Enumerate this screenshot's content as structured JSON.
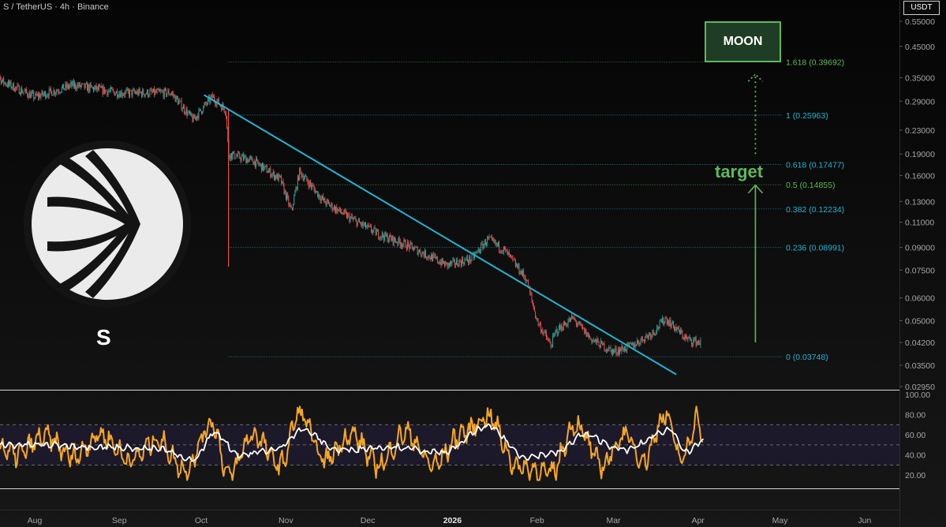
{
  "header": {
    "symbol": "S / TetherUS · 4h · Binance"
  },
  "currency": "USDT",
  "annotations": {
    "moon": "MOON",
    "target": "target",
    "ticker": "S"
  },
  "colors": {
    "background": "#0a0a0a",
    "up": "#26a69a",
    "down": "#ef5350",
    "trendline": "#22b4d2",
    "fib": "#22b4d2",
    "fib_ext": "#5fb85a",
    "rsi": "#f5a623",
    "rsi_ma": "#ffffff"
  },
  "chart_data": [
    {
      "type": "candlestick",
      "title": "S / TetherUS · 4h · Binance",
      "y_scale": "log",
      "ylim": [
        0.0295,
        0.55
      ],
      "y_ticks": [
        "0.55000",
        "0.45000",
        "0.35000",
        "0.29000",
        "0.23000",
        "0.19000",
        "0.16000",
        "0.13000",
        "0.11000",
        "0.09000",
        "0.07500",
        "0.06000",
        "0.05000",
        "0.04200",
        "0.03500",
        "0.02950"
      ],
      "x_ticks": [
        "Aug",
        "Sep",
        "Oct",
        "Nov",
        "Dec",
        "2026",
        "Feb",
        "Mar",
        "Apr",
        "May",
        "Jun"
      ],
      "price_path": [
        {
          "date": "2025-07-15",
          "close": 0.42
        },
        {
          "date": "2025-07-20",
          "close": 0.34
        },
        {
          "date": "2025-08-01",
          "close": 0.3
        },
        {
          "date": "2025-08-15",
          "close": 0.33
        },
        {
          "date": "2025-09-01",
          "close": 0.31
        },
        {
          "date": "2025-09-20",
          "close": 0.31
        },
        {
          "date": "2025-09-28",
          "close": 0.25
        },
        {
          "date": "2025-10-05",
          "close": 0.3
        },
        {
          "date": "2025-10-10",
          "close": 0.27
        },
        {
          "date": "2025-10-11",
          "close": 0.19
        },
        {
          "date": "2025-10-20",
          "close": 0.18
        },
        {
          "date": "2025-10-30",
          "close": 0.155
        },
        {
          "date": "2025-11-03",
          "close": 0.12
        },
        {
          "date": "2025-11-06",
          "close": 0.165
        },
        {
          "date": "2025-11-15",
          "close": 0.13
        },
        {
          "date": "2025-11-25",
          "close": 0.113
        },
        {
          "date": "2025-12-05",
          "close": 0.1
        },
        {
          "date": "2025-12-15",
          "close": 0.092
        },
        {
          "date": "2025-12-30",
          "close": 0.078
        },
        {
          "date": "2026-01-08",
          "close": 0.082
        },
        {
          "date": "2026-01-14",
          "close": 0.096
        },
        {
          "date": "2026-01-20",
          "close": 0.088
        },
        {
          "date": "2026-01-28",
          "close": 0.07
        },
        {
          "date": "2026-02-01",
          "close": 0.05
        },
        {
          "date": "2026-02-06",
          "close": 0.041
        },
        {
          "date": "2026-02-08",
          "close": 0.046
        },
        {
          "date": "2026-02-14",
          "close": 0.051
        },
        {
          "date": "2026-02-21",
          "close": 0.043
        },
        {
          "date": "2026-03-01",
          "close": 0.039
        },
        {
          "date": "2026-03-08",
          "close": 0.041
        },
        {
          "date": "2026-03-16",
          "close": 0.046
        },
        {
          "date": "2026-03-20",
          "close": 0.051
        },
        {
          "date": "2026-03-28",
          "close": 0.043
        },
        {
          "date": "2026-04-02",
          "close": 0.042
        }
      ],
      "low_wick": {
        "date": "2025-10-11",
        "low": 0.077
      },
      "trendline": [
        {
          "date": "2025-10-02",
          "price": 0.305
        },
        {
          "date": "2026-03-24",
          "price": 0.0325
        }
      ],
      "fib_levels": [
        {
          "label": "1.618 (0.39692)",
          "value": 0.39692,
          "extension": true
        },
        {
          "label": "1 (0.25963)",
          "value": 0.25963
        },
        {
          "label": "0.618 (0.17477)",
          "value": 0.17477
        },
        {
          "label": "0.5 (0.14855)",
          "value": 0.14855,
          "extension": true
        },
        {
          "label": "0.382 (0.12234)",
          "value": 0.12234
        },
        {
          "label": "0.236 (0.08991)",
          "value": 0.08991
        },
        {
          "label": "0 (0.03748)",
          "value": 0.03748
        }
      ],
      "arrows": [
        {
          "style": "solid",
          "date": "2026-04-22",
          "from": 0.042,
          "to": 0.148
        },
        {
          "style": "dotted",
          "date": "2026-04-22",
          "from": 0.19,
          "to": 0.36
        }
      ]
    },
    {
      "type": "line",
      "title": "RSI",
      "ylim": [
        10,
        100
      ],
      "y_ticks": [
        "100.00",
        "80.00",
        "60.00",
        "40.00",
        "20.00"
      ],
      "bands": [
        70,
        50,
        30
      ],
      "series": [
        {
          "name": "",
          "color": "#f5a623",
          "points": [
            {
              "date": "2025-07-15",
              "value": 55
            },
            {
              "date": "2025-07-25",
              "value": 40
            },
            {
              "date": "2025-08-05",
              "value": 58
            },
            {
              "date": "2025-08-15",
              "value": 38
            },
            {
              "date": "2025-08-25",
              "value": 60
            },
            {
              "date": "2025-09-05",
              "value": 35
            },
            {
              "date": "2025-09-15",
              "value": 55
            },
            {
              "date": "2025-09-25",
              "value": 25
            },
            {
              "date": "2025-10-05",
              "value": 72
            },
            {
              "date": "2025-10-11",
              "value": 20
            },
            {
              "date": "2025-10-20",
              "value": 60
            },
            {
              "date": "2025-10-30",
              "value": 30
            },
            {
              "date": "2025-11-06",
              "value": 82
            },
            {
              "date": "2025-11-15",
              "value": 35
            },
            {
              "date": "2025-11-25",
              "value": 60
            },
            {
              "date": "2025-12-05",
              "value": 30
            },
            {
              "date": "2025-12-15",
              "value": 62
            },
            {
              "date": "2025-12-25",
              "value": 30
            },
            {
              "date": "2026-01-05",
              "value": 62
            },
            {
              "date": "2026-01-14",
              "value": 78
            },
            {
              "date": "2026-01-25",
              "value": 28
            },
            {
              "date": "2026-02-06",
              "value": 22
            },
            {
              "date": "2026-02-15",
              "value": 70
            },
            {
              "date": "2026-02-25",
              "value": 30
            },
            {
              "date": "2026-03-05",
              "value": 60
            },
            {
              "date": "2026-03-12",
              "value": 35
            },
            {
              "date": "2026-03-20",
              "value": 80
            },
            {
              "date": "2026-03-26",
              "value": 35
            },
            {
              "date": "2026-04-01",
              "value": 78
            },
            {
              "date": "2026-04-03",
              "value": 48
            }
          ]
        },
        {
          "name": "",
          "color": "#ffffff",
          "points": [
            {
              "date": "2025-07-15",
              "value": 50
            },
            {
              "date": "2025-08-05",
              "value": 50
            },
            {
              "date": "2025-08-25",
              "value": 48
            },
            {
              "date": "2025-09-15",
              "value": 46
            },
            {
              "date": "2025-09-28",
              "value": 35
            },
            {
              "date": "2025-10-06",
              "value": 62
            },
            {
              "date": "2025-10-15",
              "value": 40
            },
            {
              "date": "2025-10-28",
              "value": 45
            },
            {
              "date": "2025-11-07",
              "value": 65
            },
            {
              "date": "2025-11-20",
              "value": 45
            },
            {
              "date": "2025-12-10",
              "value": 48
            },
            {
              "date": "2025-12-28",
              "value": 42
            },
            {
              "date": "2026-01-14",
              "value": 68
            },
            {
              "date": "2026-01-28",
              "value": 38
            },
            {
              "date": "2026-02-08",
              "value": 42
            },
            {
              "date": "2026-02-18",
              "value": 60
            },
            {
              "date": "2026-03-05",
              "value": 45
            },
            {
              "date": "2026-03-22",
              "value": 65
            },
            {
              "date": "2026-03-28",
              "value": 42
            },
            {
              "date": "2026-04-03",
              "value": 55
            }
          ]
        }
      ]
    }
  ]
}
